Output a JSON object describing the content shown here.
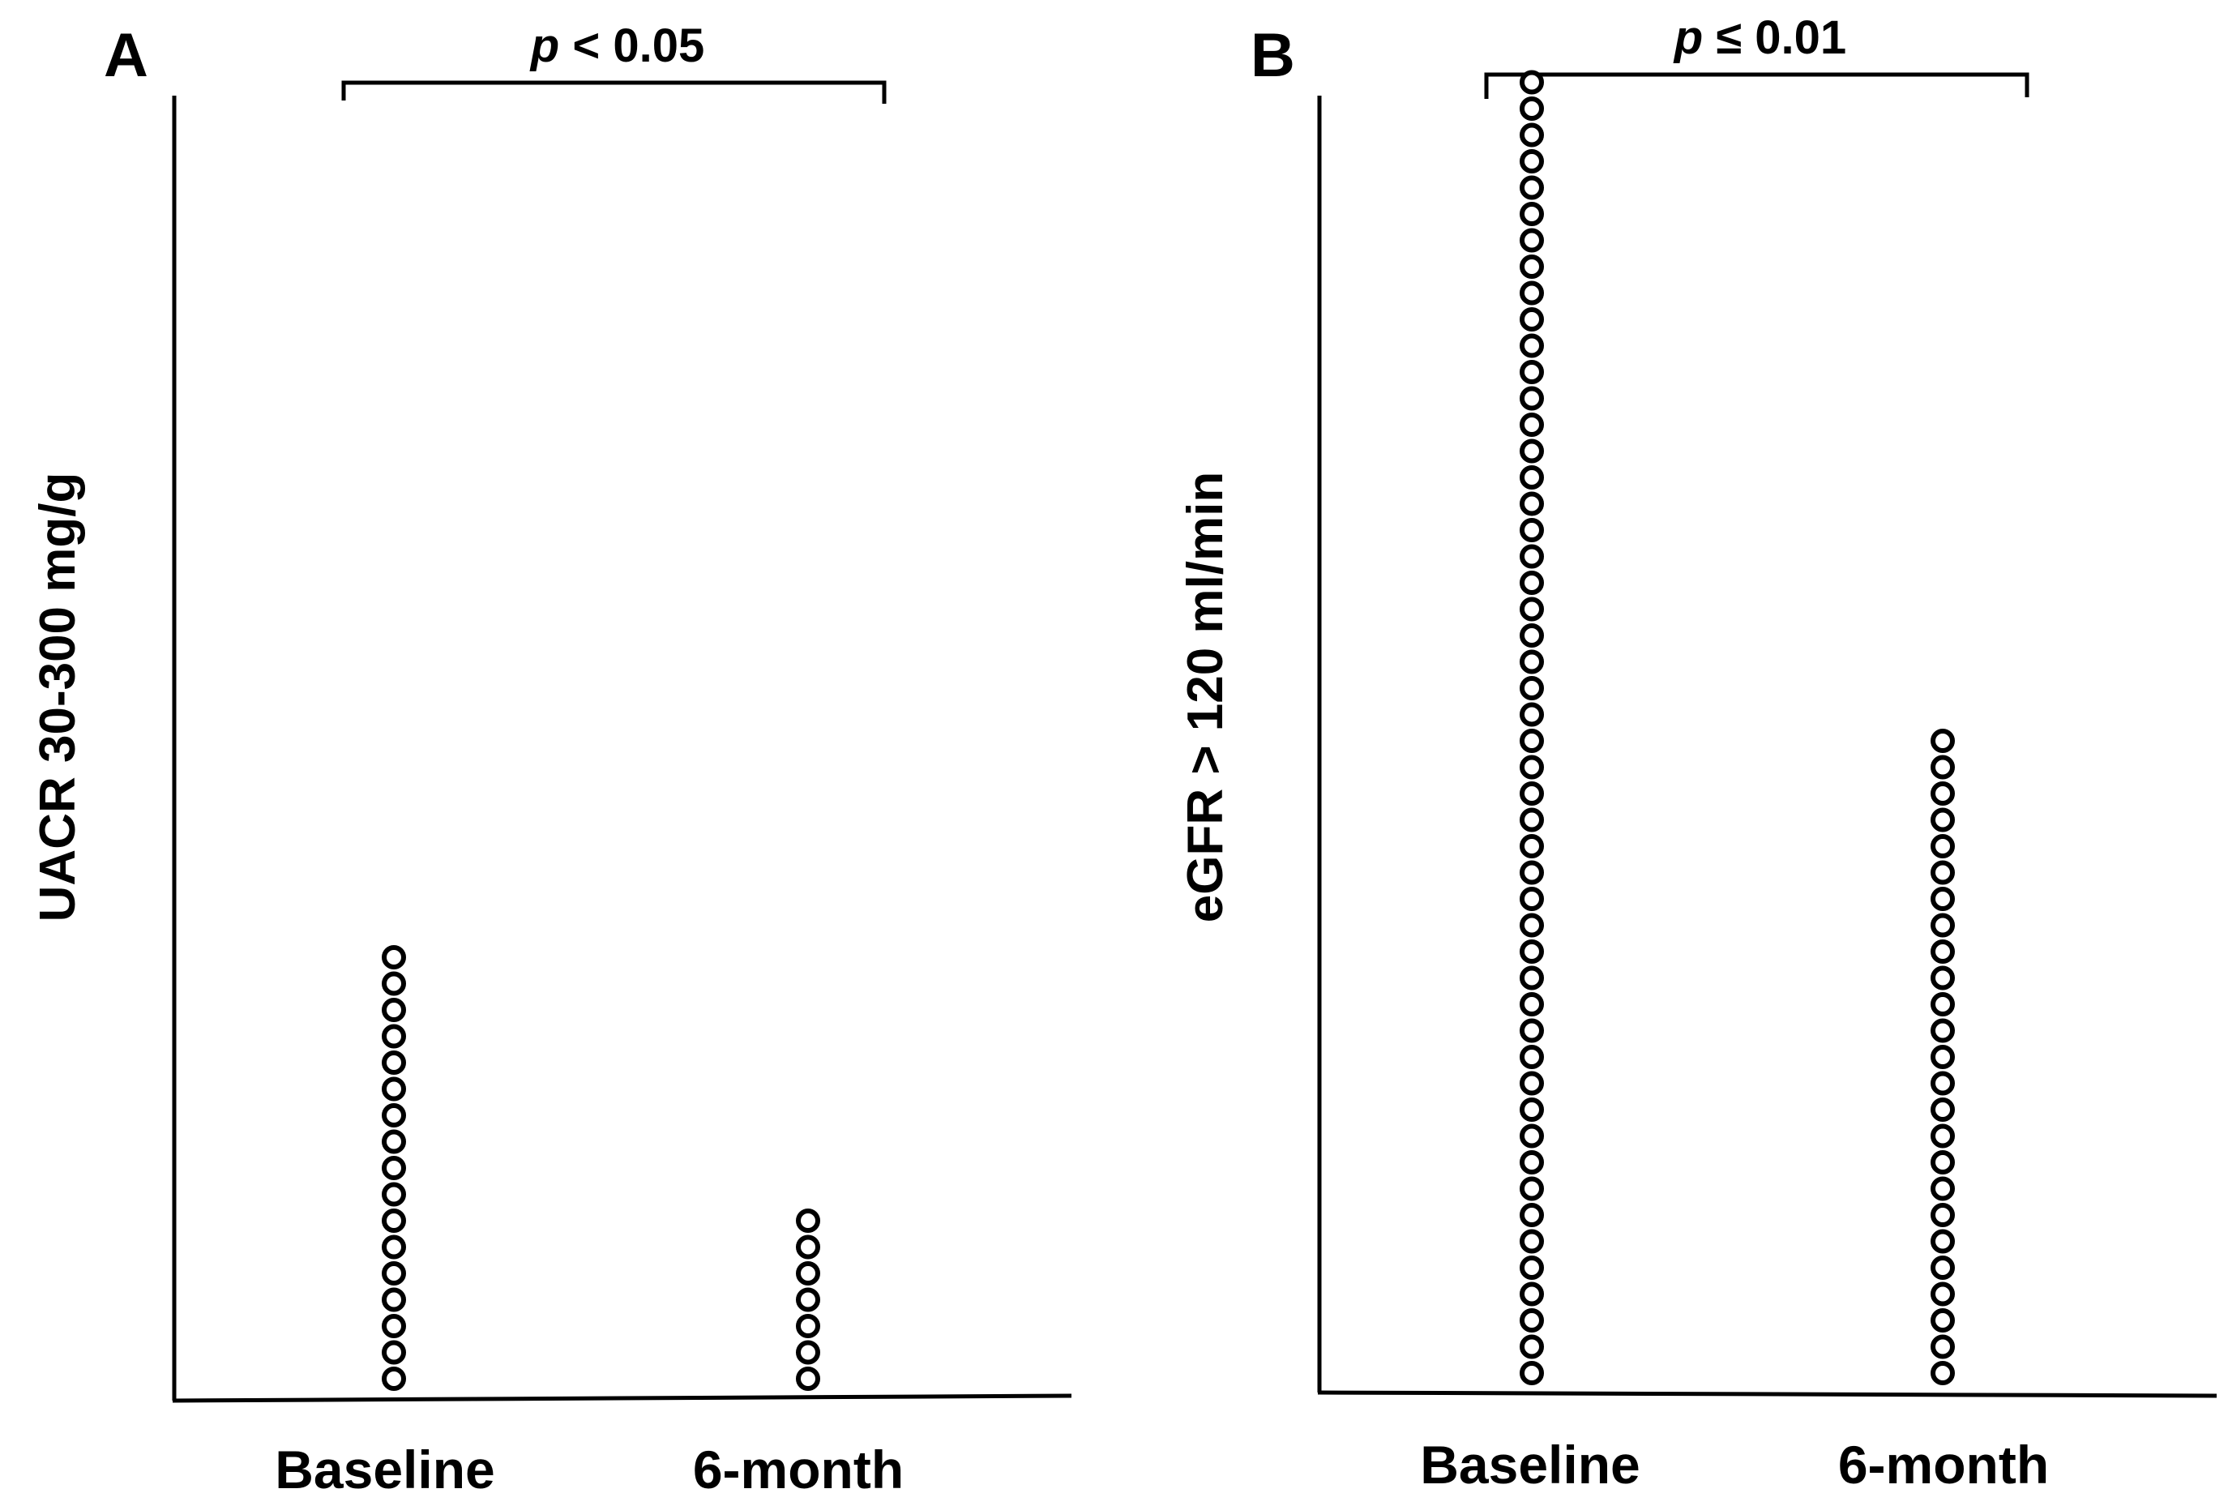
{
  "chart_data": [
    {
      "type": "scatter",
      "panel": "A",
      "ylabel": "UACR 30-300 mg/g",
      "xlabel": "",
      "categories": [
        "Baseline",
        "6-month"
      ],
      "series": [
        {
          "name": "Baseline",
          "count": 17
        },
        {
          "name": "6-month",
          "count": 7
        }
      ],
      "significance": {
        "prefix": "p",
        "text": " < 0.05",
        "between": [
          "Baseline",
          "6-month"
        ]
      },
      "ylim": [
        0,
        53
      ]
    },
    {
      "type": "scatter",
      "panel": "B",
      "ylabel": "eGFR > 120 ml/min",
      "xlabel": "",
      "categories": [
        "Baseline",
        "6-month"
      ],
      "series": [
        {
          "name": "Baseline",
          "count": 50
        },
        {
          "name": "6-month",
          "count": 25
        }
      ],
      "significance": {
        "prefix": "p",
        "text": " ≤ 0.01",
        "between": [
          "Baseline",
          "6-month"
        ]
      },
      "ylim": [
        0,
        53
      ]
    }
  ]
}
